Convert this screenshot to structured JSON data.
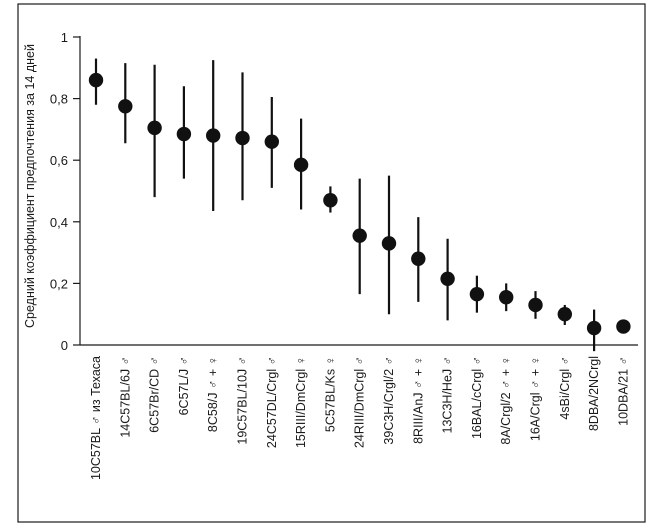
{
  "chart_data": {
    "type": "scatter",
    "ylabel": "Средний коэффициент предпочтения за 14 дней",
    "ylim": [
      0,
      1
    ],
    "yticks": [
      {
        "value": 0,
        "label": "0"
      },
      {
        "value": 0.2,
        "label": "0,2"
      },
      {
        "value": 0.4,
        "label": "0,4"
      },
      {
        "value": 0.6,
        "label": "0,6"
      },
      {
        "value": 0.8,
        "label": "0,8"
      },
      {
        "value": 1,
        "label": "1"
      }
    ],
    "categories": [
      "10C57BL ♂ из Техаса",
      "14C57BL/6J ♂",
      "6C57Br/CD ♂",
      "6C57L/J ♂",
      "8C58/J ♂ + ♀",
      "19C57BL/10J ♂",
      "24C57DL/Crgl ♂",
      "15RIII/DmCrgl ♀",
      "5C57BL/Ks ♀",
      "24RIII/DmCrgl ♂",
      "39C3H/Crgl/2 ♂",
      "8RIII/AnJ ♂ + ♀",
      "13C3H/HeJ ♂",
      "16BAL/cCrgl ♂",
      "8A/Crgl/2 ♂ + ♀",
      "16A/Crgl ♂ + ♀",
      "4sBi/Crgl ♂",
      "8DBA/2NCrgl",
      "10DBA/21 ♂"
    ],
    "values": [
      0.86,
      0.775,
      0.705,
      0.685,
      0.68,
      0.672,
      0.66,
      0.585,
      0.47,
      0.355,
      0.33,
      0.28,
      0.215,
      0.165,
      0.155,
      0.13,
      0.1,
      0.055,
      0.06
    ],
    "error_low": [
      0.78,
      0.655,
      0.48,
      0.54,
      0.435,
      0.47,
      0.51,
      0.44,
      0.43,
      0.165,
      0.1,
      0.14,
      0.08,
      0.105,
      0.11,
      0.085,
      0.065,
      -0.02,
      0.04
    ],
    "error_high": [
      0.93,
      0.915,
      0.91,
      0.84,
      0.925,
      0.885,
      0.805,
      0.735,
      0.515,
      0.54,
      0.55,
      0.415,
      0.345,
      0.225,
      0.2,
      0.175,
      0.13,
      0.115,
      0.075
    ],
    "grid": false,
    "colors": {
      "marker": "#111111",
      "axis": "#1a1a1a"
    }
  }
}
